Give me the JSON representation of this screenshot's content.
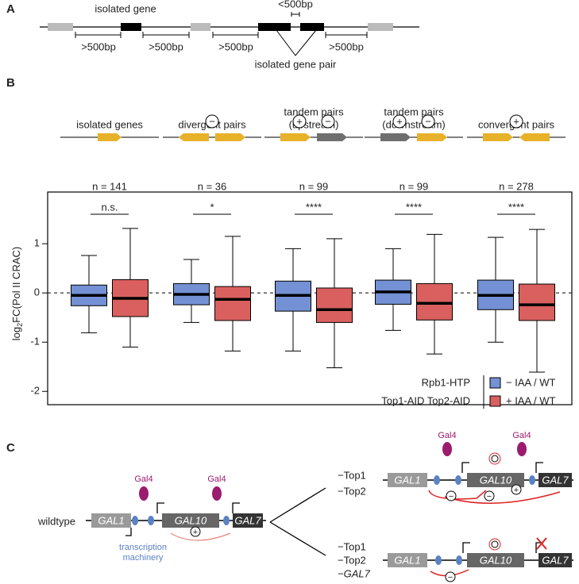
{
  "panel_labels": [
    "A",
    "B",
    "C"
  ],
  "panel_a": {
    "isolated_gene": "isolated gene",
    "short_gap": "<500bp",
    "long_gaps": [
      ">500bp",
      ">500bp",
      ">500bp",
      ">500bp"
    ],
    "isolated_gene_pair": "isolated gene pair"
  },
  "chart_data": {
    "type": "box",
    "ylabel": [
      "log",
      "2",
      "FC(Pol II CRAC)"
    ],
    "categories": [
      [
        "isolated genes"
      ],
      [
        "divergent pairs"
      ],
      [
        "tandem pairs",
        "(upstream)"
      ],
      [
        "tandem pairs",
        "(downstream)"
      ],
      [
        "convergent pairs"
      ]
    ],
    "supercoil_signs": [
      [],
      [
        "−"
      ],
      [
        "+",
        "−"
      ],
      [
        "+",
        "−"
      ],
      [
        "+"
      ]
    ],
    "n_labels": [
      "n = 141",
      "n = 36",
      "n = 99",
      "n = 99",
      "n = 278"
    ],
    "significance": [
      "n.s.",
      "*",
      "****",
      "****",
      "****"
    ],
    "ylim": [
      -2.27,
      2.05
    ],
    "yticks": [
      -2,
      -1,
      0,
      1
    ],
    "reference_line": 0,
    "legend_title": [
      "Rpb1-HTP",
      "Top1-AID Top2-AID"
    ],
    "series": [
      {
        "name": "− IAA / WT",
        "color": "#7391d4",
        "whislo": [
          -0.81,
          -0.6,
          -1.18,
          -0.76,
          -1.0
        ],
        "q1": [
          -0.26,
          -0.24,
          -0.37,
          -0.23,
          -0.34
        ],
        "median": [
          -0.05,
          -0.03,
          -0.05,
          0.02,
          -0.05
        ],
        "q3": [
          0.16,
          0.19,
          0.24,
          0.26,
          0.26
        ],
        "whishi": [
          0.76,
          0.68,
          0.9,
          0.9,
          1.13
        ]
      },
      {
        "name": "+ IAA / WT",
        "color": "#d9605f",
        "whislo": [
          -1.1,
          -1.18,
          -1.52,
          -1.24,
          -1.61
        ],
        "q1": [
          -0.48,
          -0.56,
          -0.6,
          -0.55,
          -0.56
        ],
        "median": [
          -0.11,
          -0.13,
          -0.34,
          -0.21,
          -0.24
        ],
        "q3": [
          0.27,
          0.13,
          0.1,
          0.19,
          0.18
        ],
        "whishi": [
          1.31,
          1.15,
          1.1,
          1.19,
          1.29
        ]
      }
    ]
  },
  "panel_c": {
    "wildtype": "wildtype",
    "genes": [
      "GAL1",
      "GAL10",
      "GAL7"
    ],
    "activator": "Gal4",
    "machinery": [
      "transcription",
      "machinery"
    ],
    "conditions_top": [
      "−Top1",
      "−Top2"
    ],
    "conditions_bottom": [
      "−Top1",
      "−Top2",
      "−GAL7"
    ],
    "signs": {
      "plus": "+",
      "minus": "−"
    }
  }
}
